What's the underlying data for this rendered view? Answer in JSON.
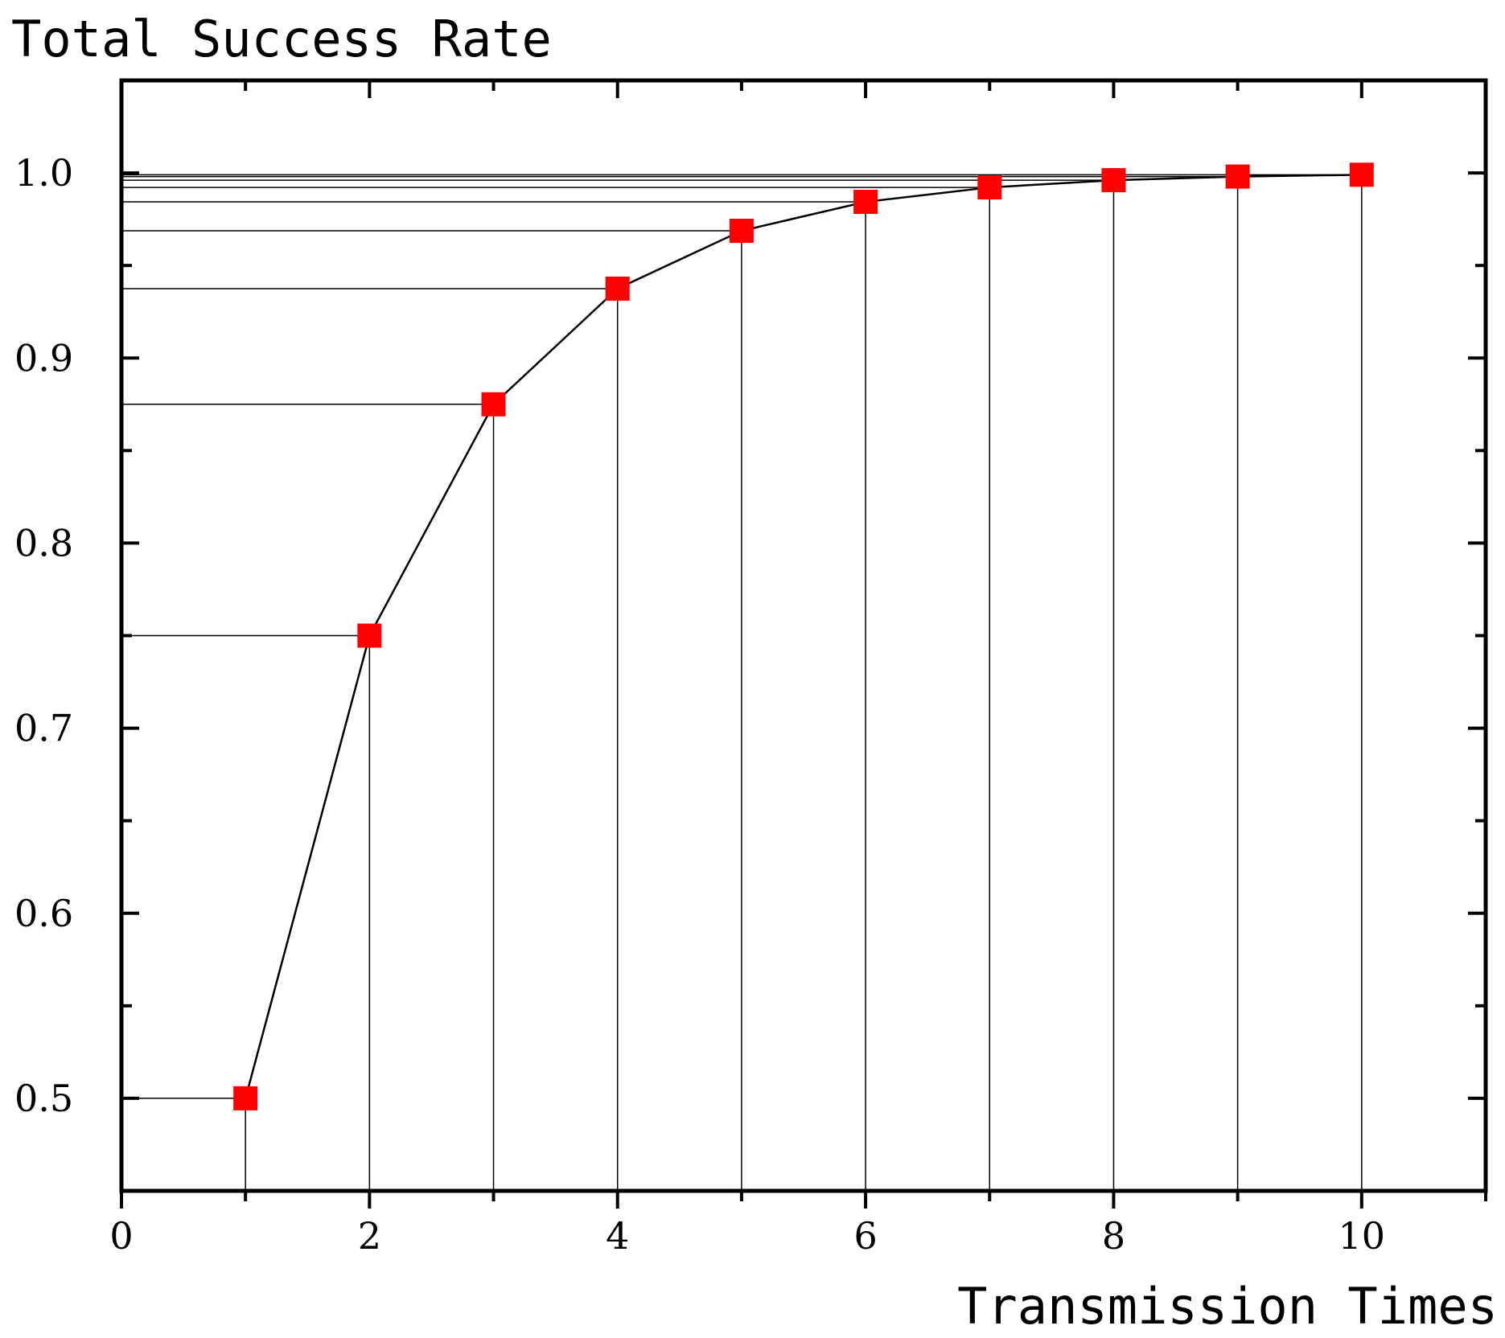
{
  "chart_data": {
    "type": "line",
    "title": "",
    "xlabel": "Transmission Times",
    "ylabel": "Total Success Rate",
    "x": [
      1,
      2,
      3,
      4,
      5,
      6,
      7,
      8,
      9,
      10
    ],
    "series": [
      {
        "values": [
          0.5,
          0.75,
          0.875,
          0.9375,
          0.96875,
          0.984375,
          0.9921875,
          0.99609375,
          0.998046875,
          0.9990234375
        ]
      }
    ],
    "xlim": [
      0,
      11
    ],
    "ylim": [
      0.45,
      1.05
    ],
    "xticks": [
      0,
      2,
      4,
      6,
      8,
      10
    ],
    "xtick_labels": [
      "0",
      "2",
      "4",
      "6",
      "8",
      "10"
    ],
    "yticks": [
      0.5,
      0.6,
      0.7,
      0.8,
      0.9,
      1.0
    ],
    "ytick_labels": [
      "0.5",
      "0.6",
      "0.7",
      "0.8",
      "0.9",
      "1.0"
    ],
    "grid": false,
    "drop_lines": true,
    "marker": "square",
    "marker_color": "#ff0000",
    "line_color": "#000000"
  }
}
